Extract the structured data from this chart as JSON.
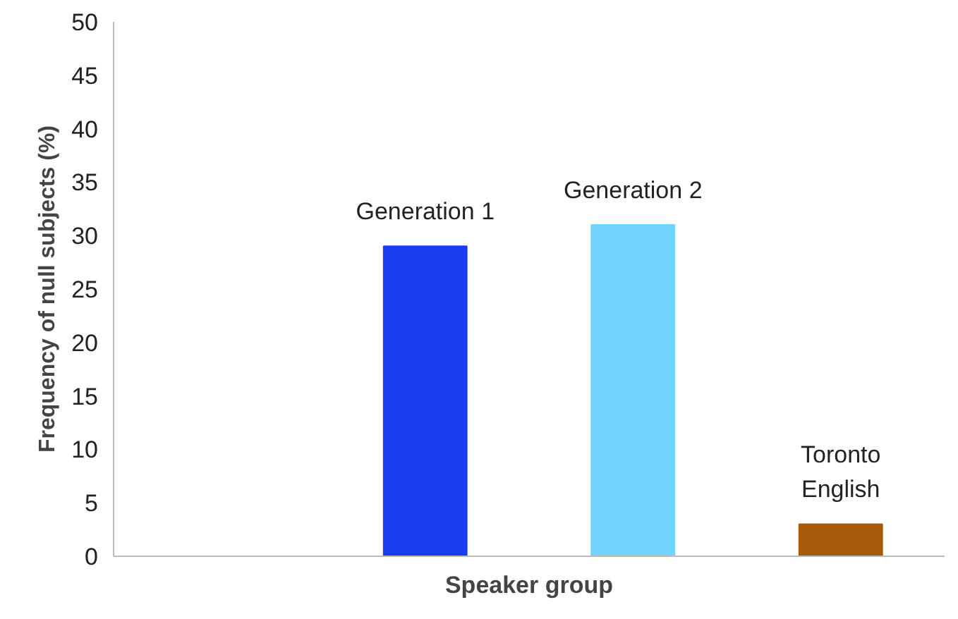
{
  "chart_data": {
    "type": "bar",
    "xlabel": "Speaker group",
    "ylabel": "Frequency of null subjects (%)",
    "categories": [
      null,
      null,
      null,
      null
    ],
    "values": [
      null,
      29,
      31,
      3
    ],
    "colors": [
      "#1a3cf0",
      "#1a3cf0",
      "#72d4fc",
      "#a65a0a"
    ],
    "annotations": [
      "Generation 1",
      "Generation 2",
      "Toronto English"
    ],
    "ylim": [
      0,
      50
    ],
    "yticks": [
      0,
      5,
      10,
      15,
      20,
      25,
      30,
      35,
      40,
      45,
      50
    ],
    "grid": false,
    "tick_labels": "y"
  }
}
